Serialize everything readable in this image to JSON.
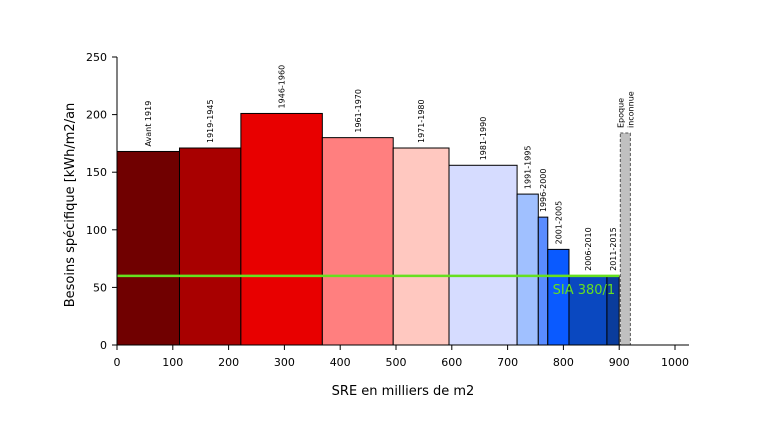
{
  "chart_data": {
    "type": "bar",
    "variable_width": true,
    "xlabel": "SRE en milliers de m2",
    "ylabel": "Besoins spécifique [kWh/m2/an",
    "xlim": [
      0,
      1000
    ],
    "ylim": [
      0,
      250
    ],
    "x_ticks": [
      0,
      100,
      200,
      300,
      400,
      500,
      600,
      700,
      800,
      900,
      1000
    ],
    "y_ticks": [
      0,
      50,
      100,
      150,
      200,
      250
    ],
    "grid": false,
    "series": [
      {
        "label": "Avant 1919",
        "x_start": 0,
        "x_end": 112,
        "value": 168,
        "color": "#700000"
      },
      {
        "label": "1919-1945",
        "x_start": 112,
        "x_end": 222,
        "value": 171,
        "color": "#a80000"
      },
      {
        "label": "1946-1960",
        "x_start": 222,
        "x_end": 368,
        "value": 201,
        "color": "#e80000"
      },
      {
        "label": "1961-1970",
        "x_start": 368,
        "x_end": 495,
        "value": 180,
        "color": "#ff7f7f"
      },
      {
        "label": "1971-1980",
        "x_start": 495,
        "x_end": 595,
        "value": 171,
        "color": "#ffc8c0"
      },
      {
        "label": "1981-1990",
        "x_start": 595,
        "x_end": 717,
        "value": 156,
        "color": "#d6dcff"
      },
      {
        "label": "1991-1995",
        "x_start": 717,
        "x_end": 755,
        "value": 131,
        "color": "#a0c0ff"
      },
      {
        "label": "1996-2000",
        "x_start": 755,
        "x_end": 772,
        "value": 111,
        "color": "#5a8cff"
      },
      {
        "label": "2001-2005",
        "x_start": 772,
        "x_end": 810,
        "value": 83,
        "color": "#0a5aff"
      },
      {
        "label": "2006-2010",
        "x_start": 810,
        "x_end": 878,
        "value": 60,
        "color": "#0a48c0"
      },
      {
        "label": "2011-2015",
        "x_start": 878,
        "x_end": 900,
        "value": 60,
        "color": "#0a3c9c"
      },
      {
        "label": "Epoque inconnue",
        "label_lines": [
          "Epoque",
          "inconnue"
        ],
        "x_start": 902,
        "x_end": 920,
        "value": 184,
        "color": "#c0c0c0",
        "dashed": true
      }
    ],
    "reference_line": {
      "label": "SIA 380/1",
      "value": 60,
      "x_start": 0,
      "x_end": 900,
      "color": "#66e020"
    }
  }
}
